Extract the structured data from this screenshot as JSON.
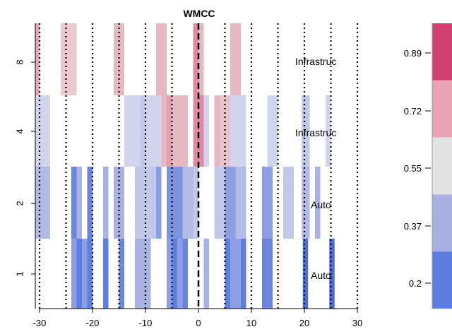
{
  "chart_data": {
    "type": "heatmap",
    "title": "WMCC",
    "xlim": [
      -30,
      30
    ],
    "x_ticks": [
      -30,
      -20,
      -10,
      0,
      10,
      20,
      30
    ],
    "y_ticks": [
      "1",
      "2",
      "4",
      "8"
    ],
    "row_labels": [
      "Auto",
      "Auto",
      "Infrastruc",
      "Infrastruc"
    ],
    "reference_lines": {
      "dashed_at": 0,
      "dotted_at": [
        -30,
        -25,
        -20,
        -15,
        -10,
        -5,
        5,
        10,
        15,
        20,
        25,
        30
      ]
    },
    "colorbar": {
      "ticks": [
        "0.89",
        "0.72",
        "0.55",
        "0.37",
        "0.2"
      ],
      "bands": [
        "#d04070",
        "#e8a4b4",
        "#e2e2e2",
        "#a8b0e2",
        "#5b7ee0"
      ]
    },
    "rows": [
      {
        "row": "1",
        "segments": [
          [
            -24,
            -20,
            "#8d9fe2"
          ],
          [
            -23,
            -22,
            "#5e7ee0"
          ],
          [
            -21,
            -20,
            "#5e7ee0"
          ],
          [
            -18,
            -17,
            "#5e7ee0"
          ],
          [
            -15,
            -14,
            "#6a84e0"
          ],
          [
            -12,
            -9,
            "#a8b3e4"
          ],
          [
            -6,
            -2,
            "#8d9fe2"
          ],
          [
            -5,
            -4,
            "#5e7ee0"
          ],
          [
            -3,
            -2,
            "#6a84e0"
          ],
          [
            1,
            2,
            "#a8b3e4"
          ],
          [
            5,
            8,
            "#8d9fe2"
          ],
          [
            5,
            6,
            "#5e7ee0"
          ],
          [
            8,
            9,
            "#5e7ee0"
          ],
          [
            12,
            14,
            "#6a84e0"
          ],
          [
            19.7,
            20.7,
            "#4b6fd8"
          ],
          [
            24.7,
            25.7,
            "#4b6fd8"
          ]
        ]
      },
      {
        "row": "2",
        "segments": [
          [
            -31,
            -28,
            "#b2bbe6"
          ],
          [
            -24,
            -23,
            "#6a84e0"
          ],
          [
            -23,
            -22,
            "#a8b3e4"
          ],
          [
            -21,
            -20,
            "#6a84e0"
          ],
          [
            -18,
            -17,
            "#a8b3e4"
          ],
          [
            -16,
            -14,
            "#a8b3e4"
          ],
          [
            -12,
            -8,
            "#c2c8ea"
          ],
          [
            -8,
            -7,
            "#8d9fe2"
          ],
          [
            -6,
            -3,
            "#7d93e2"
          ],
          [
            -3,
            -1,
            "#b2bbe6"
          ],
          [
            -1,
            0,
            "#c2c8ea"
          ],
          [
            3,
            5,
            "#c2c8ea"
          ],
          [
            5,
            7,
            "#8d9fe2"
          ],
          [
            7,
            9,
            "#b2bbe6"
          ],
          [
            12,
            14,
            "#8d9fe2"
          ],
          [
            16,
            18,
            "#c2c8ea"
          ],
          [
            19.5,
            21,
            "#b2bbe6"
          ],
          [
            22,
            23,
            "#a8b3e4"
          ]
        ]
      },
      {
        "row": "4",
        "segments": [
          [
            -31,
            -28,
            "#d0d4ec"
          ],
          [
            -14,
            -11,
            "#d0d4ec"
          ],
          [
            -11,
            -10,
            "#c2c8ea"
          ],
          [
            -10,
            -7,
            "#d0d4ec"
          ],
          [
            -7,
            -6,
            "#e6b8c4"
          ],
          [
            -6,
            -5,
            "#e0a0b2"
          ],
          [
            -5,
            -4,
            "#e6b8c4"
          ],
          [
            -4,
            -2,
            "#e6b8c4"
          ],
          [
            -1,
            0,
            "#dd8aa2"
          ],
          [
            0,
            1,
            "#e08aa2"
          ],
          [
            1,
            2,
            "#d0d4ec"
          ],
          [
            3,
            4,
            "#e6b8c4"
          ],
          [
            4,
            6,
            "#e8c2cc"
          ],
          [
            6,
            9,
            "#d0d4ec"
          ],
          [
            13,
            15,
            "#d0d4ec"
          ],
          [
            19.5,
            21,
            "#c2c8ea"
          ],
          [
            24,
            25,
            "#d0d4ec"
          ]
        ]
      },
      {
        "row": "8",
        "segments": [
          [
            -31,
            -30,
            "#e6a8b8"
          ],
          [
            -26,
            -23,
            "#ecc8d0"
          ],
          [
            -24,
            -23,
            "#ecc8d0"
          ],
          [
            -16,
            -14,
            "#e6b8c4"
          ],
          [
            -8,
            -6,
            "#e6b8c4"
          ],
          [
            -1,
            0,
            "#e08aa2"
          ],
          [
            0,
            1,
            "#e6b8c4"
          ],
          [
            6,
            8,
            "#e6b8c4"
          ]
        ]
      }
    ]
  }
}
